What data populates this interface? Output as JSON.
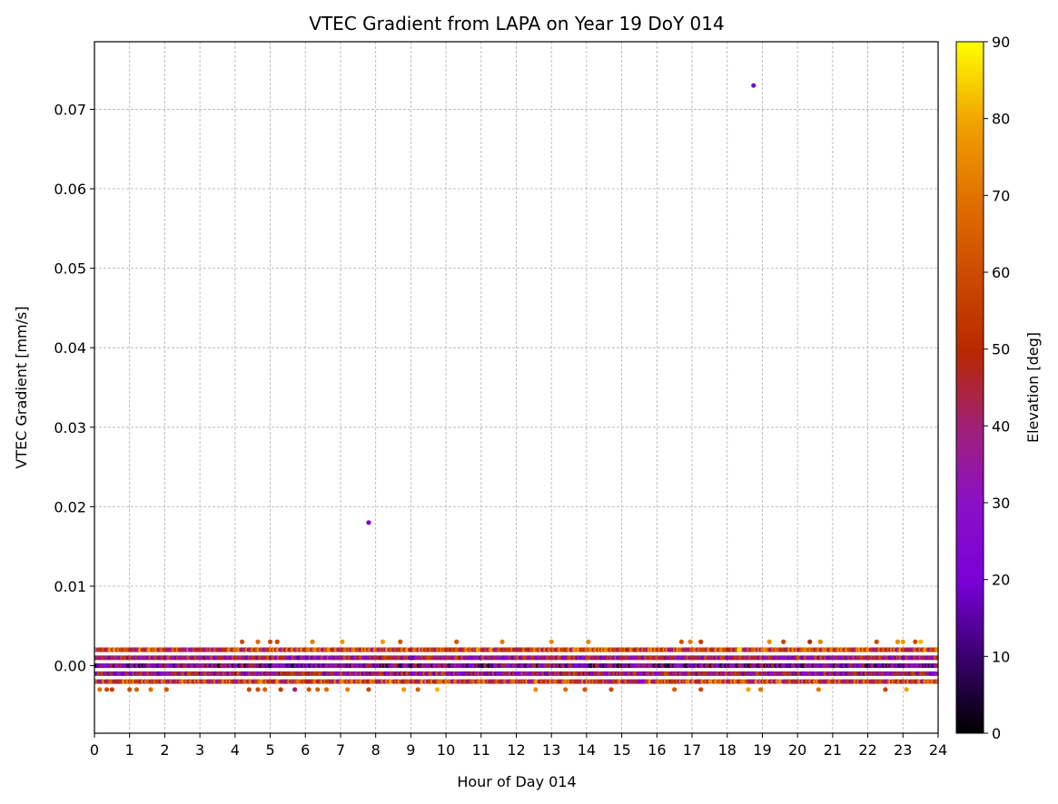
{
  "chart_data": {
    "type": "scatter",
    "title": "VTEC Gradient from LAPA on Year 19 DoY 014",
    "xlabel": "Hour of Day 014",
    "ylabel": "VTEC Gradient [mm/s]",
    "xlim": [
      0,
      24
    ],
    "ylim": [
      -0.0085,
      0.0785
    ],
    "xticks": [
      0,
      1,
      2,
      3,
      4,
      5,
      6,
      7,
      8,
      9,
      10,
      11,
      12,
      13,
      14,
      15,
      16,
      17,
      18,
      19,
      20,
      21,
      22,
      23,
      24
    ],
    "xtick_labels": [
      "0",
      "1",
      "2",
      "3",
      "4",
      "5",
      "6",
      "7",
      "8",
      "9",
      "10",
      "11",
      "12",
      "13",
      "14",
      "15",
      "16",
      "17",
      "18",
      "19",
      "20",
      "21",
      "22",
      "23",
      "24"
    ],
    "yticks": [
      0.0,
      0.01,
      0.02,
      0.03,
      0.04,
      0.05,
      0.06,
      0.07
    ],
    "ytick_labels": [
      "0.00",
      "0.01",
      "0.02",
      "0.03",
      "0.04",
      "0.05",
      "0.06",
      "0.07"
    ],
    "grid": true,
    "colorbar": {
      "label": "Elevation [deg]",
      "min": 0,
      "max": 90,
      "ticks": [
        0,
        10,
        20,
        30,
        40,
        50,
        60,
        70,
        80,
        90
      ],
      "tick_labels": [
        "0",
        "10",
        "20",
        "30",
        "40",
        "50",
        "60",
        "70",
        "80",
        "90"
      ],
      "colormap": "gnuplot",
      "stops": [
        "#000000",
        "#3a006e",
        "#7a00d8",
        "#8a10c8",
        "#a0207a",
        "#b82800",
        "#cc4a00",
        "#e07000",
        "#f0a000",
        "#ffff00"
      ]
    },
    "bands": [
      {
        "y": 0.002,
        "elevation": 55
      },
      {
        "y": 0.001,
        "elevation": 38
      },
      {
        "y": 0.0,
        "elevation": 25
      },
      {
        "y": -0.001,
        "elevation": 38
      },
      {
        "y": -0.002,
        "elevation": 55
      }
    ],
    "points": [
      {
        "x": 7.8,
        "y": 0.018,
        "elevation": 22
      },
      {
        "x": 18.75,
        "y": 0.073,
        "elevation": 22
      },
      {
        "x": 0.15,
        "y": -0.003,
        "elevation": 70
      },
      {
        "x": 0.35,
        "y": -0.003,
        "elevation": 60
      },
      {
        "x": 0.5,
        "y": -0.003,
        "elevation": 55
      },
      {
        "x": 1.0,
        "y": -0.003,
        "elevation": 60
      },
      {
        "x": 1.2,
        "y": -0.003,
        "elevation": 65
      },
      {
        "x": 1.6,
        "y": -0.003,
        "elevation": 70
      },
      {
        "x": 2.05,
        "y": -0.003,
        "elevation": 62
      },
      {
        "x": 4.2,
        "y": 0.003,
        "elevation": 60
      },
      {
        "x": 4.4,
        "y": -0.003,
        "elevation": 58
      },
      {
        "x": 4.65,
        "y": 0.003,
        "elevation": 68
      },
      {
        "x": 4.65,
        "y": -0.003,
        "elevation": 60
      },
      {
        "x": 4.85,
        "y": -0.003,
        "elevation": 65
      },
      {
        "x": 5.0,
        "y": 0.003,
        "elevation": 60
      },
      {
        "x": 5.2,
        "y": 0.003,
        "elevation": 58
      },
      {
        "x": 5.3,
        "y": -0.003,
        "elevation": 55
      },
      {
        "x": 5.7,
        "y": -0.003,
        "elevation": 40
      },
      {
        "x": 6.1,
        "y": -0.003,
        "elevation": 62
      },
      {
        "x": 6.2,
        "y": 0.003,
        "elevation": 72
      },
      {
        "x": 6.35,
        "y": -0.003,
        "elevation": 65
      },
      {
        "x": 6.6,
        "y": -0.003,
        "elevation": 68
      },
      {
        "x": 7.05,
        "y": 0.003,
        "elevation": 78
      },
      {
        "x": 7.2,
        "y": -0.003,
        "elevation": 72
      },
      {
        "x": 7.8,
        "y": -0.003,
        "elevation": 58
      },
      {
        "x": 8.2,
        "y": 0.003,
        "elevation": 78
      },
      {
        "x": 8.7,
        "y": 0.003,
        "elevation": 62
      },
      {
        "x": 8.8,
        "y": -0.003,
        "elevation": 78
      },
      {
        "x": 9.2,
        "y": -0.003,
        "elevation": 65
      },
      {
        "x": 9.75,
        "y": -0.003,
        "elevation": 82
      },
      {
        "x": 10.3,
        "y": 0.003,
        "elevation": 62
      },
      {
        "x": 11.6,
        "y": 0.003,
        "elevation": 72
      },
      {
        "x": 12.55,
        "y": -0.003,
        "elevation": 76
      },
      {
        "x": 13.0,
        "y": 0.003,
        "elevation": 75
      },
      {
        "x": 13.4,
        "y": -0.003,
        "elevation": 68
      },
      {
        "x": 13.95,
        "y": -0.003,
        "elevation": 62
      },
      {
        "x": 14.05,
        "y": 0.003,
        "elevation": 74
      },
      {
        "x": 14.7,
        "y": -0.003,
        "elevation": 60
      },
      {
        "x": 15.5,
        "y": -0.002,
        "elevation": 25
      },
      {
        "x": 15.6,
        "y": -0.002,
        "elevation": 28
      },
      {
        "x": 16.5,
        "y": -0.003,
        "elevation": 65
      },
      {
        "x": 16.7,
        "y": 0.003,
        "elevation": 62
      },
      {
        "x": 16.95,
        "y": 0.003,
        "elevation": 72
      },
      {
        "x": 17.25,
        "y": 0.003,
        "elevation": 55
      },
      {
        "x": 17.25,
        "y": -0.003,
        "elevation": 60
      },
      {
        "x": 18.35,
        "y": 0.002,
        "elevation": 88
      },
      {
        "x": 18.6,
        "y": -0.003,
        "elevation": 80
      },
      {
        "x": 18.95,
        "y": -0.003,
        "elevation": 70
      },
      {
        "x": 19.2,
        "y": 0.003,
        "elevation": 75
      },
      {
        "x": 19.6,
        "y": 0.003,
        "elevation": 58
      },
      {
        "x": 20.35,
        "y": 0.003,
        "elevation": 50
      },
      {
        "x": 20.6,
        "y": -0.003,
        "elevation": 70
      },
      {
        "x": 20.65,
        "y": 0.003,
        "elevation": 74
      },
      {
        "x": 22.25,
        "y": 0.003,
        "elevation": 60
      },
      {
        "x": 22.5,
        "y": -0.003,
        "elevation": 58
      },
      {
        "x": 22.85,
        "y": 0.003,
        "elevation": 75
      },
      {
        "x": 23.0,
        "y": 0.003,
        "elevation": 78
      },
      {
        "x": 23.1,
        "y": -0.003,
        "elevation": 80
      },
      {
        "x": 23.35,
        "y": 0.003,
        "elevation": 60
      },
      {
        "x": 23.5,
        "y": 0.003,
        "elevation": 82
      }
    ]
  }
}
